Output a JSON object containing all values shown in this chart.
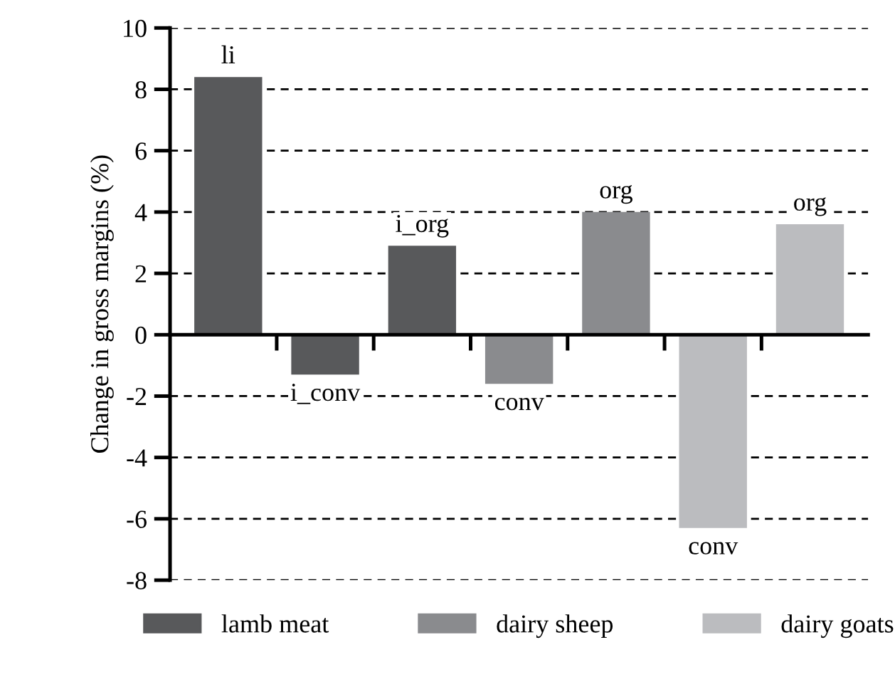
{
  "chart_data": {
    "type": "bar",
    "ylabel": "Change in gross margins (%)",
    "categories": [
      null,
      null,
      null,
      null,
      null,
      null,
      null
    ],
    "series": [
      {
        "name": "lamb meat",
        "color": "#58595b",
        "values": [
          8.4,
          -1.3,
          2.9,
          null,
          null,
          null,
          null
        ],
        "value_labels": [
          "li",
          "i_conv",
          "i_org",
          null,
          null,
          null,
          null
        ]
      },
      {
        "name": "dairy sheep",
        "color": "#8a8b8e",
        "values": [
          null,
          null,
          null,
          -1.6,
          4.0,
          null,
          null
        ],
        "value_labels": [
          null,
          null,
          null,
          "conv",
          "org",
          null,
          null
        ]
      },
      {
        "name": "dairy goats",
        "color": "#bbbcbf",
        "values": [
          null,
          null,
          null,
          null,
          null,
          -6.3,
          3.6
        ],
        "value_labels": [
          null,
          null,
          null,
          null,
          null,
          "conv",
          "org"
        ]
      }
    ],
    "ylim": [
      -8,
      10
    ],
    "yticks": [
      -8,
      -6,
      -4,
      -2,
      0,
      2,
      4,
      6,
      8,
      10
    ],
    "grid": "y",
    "line_style": "dashed",
    "legend": "bottom"
  }
}
